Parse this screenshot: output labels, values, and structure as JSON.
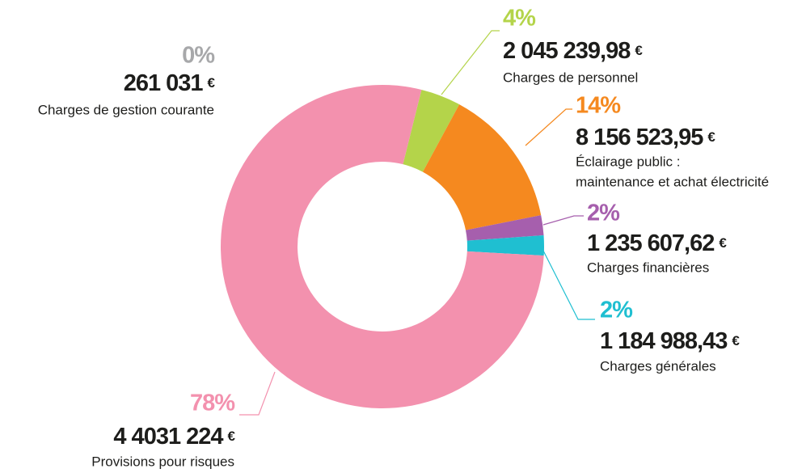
{
  "chart_data": {
    "type": "donut",
    "categories": [
      [
        "Charges de gestion courante"
      ],
      [
        "Charges de personnel"
      ],
      [
        "Éclairage public :",
        "maintenance et achat électricité"
      ],
      [
        "Charges financières"
      ],
      [
        "Charges générales"
      ],
      [
        "Provisions pour risques"
      ]
    ],
    "values": [
      0,
      4,
      14,
      2,
      2,
      78
    ],
    "value_labels": [
      "0%",
      "4%",
      "14%",
      "2%",
      "2%",
      "78%"
    ],
    "amounts": [
      "261 031",
      "2 045 239,98",
      "8 156 523,95",
      "1 235 607,62",
      "1 184 988,43",
      "4 4031 224"
    ],
    "currency": "€",
    "colors": [
      "#a7a8aa",
      "#b4d44a",
      "#f5891f",
      "#a65fad",
      "#1fbfd1",
      "#f391ae"
    ]
  }
}
